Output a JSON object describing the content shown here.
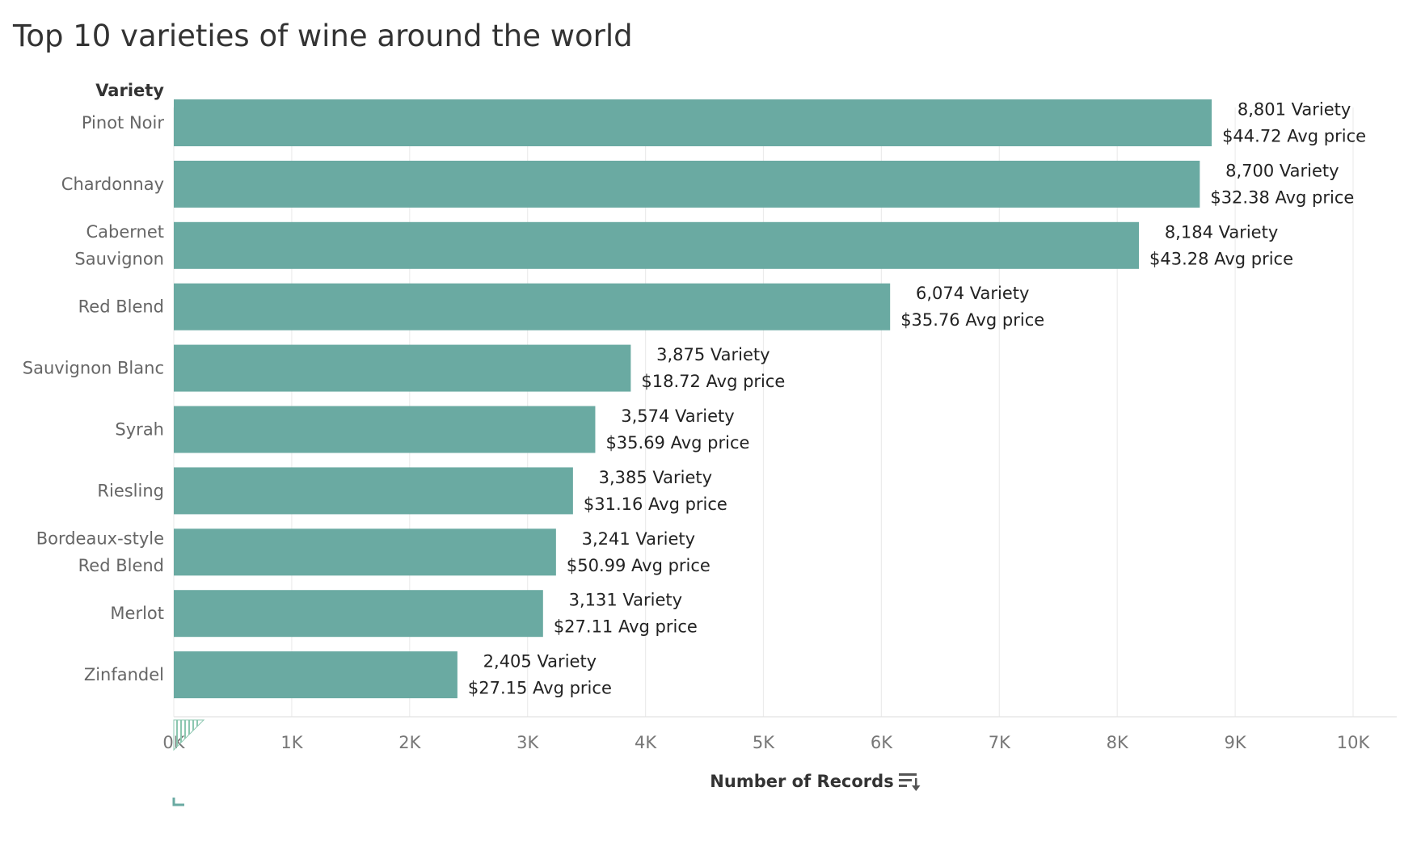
{
  "chart_data": {
    "type": "bar",
    "orientation": "horizontal",
    "title": "Top 10 varieties of wine around the world",
    "category_header": "Variety",
    "xlabel": "Number of Records",
    "xlim": [
      0,
      10000
    ],
    "x_ticks": [
      "0K",
      "1K",
      "2K",
      "3K",
      "4K",
      "5K",
      "6K",
      "7K",
      "8K",
      "9K",
      "10K"
    ],
    "grid": true,
    "bar_color": "#6aaaa2",
    "categories": [
      [
        "Pinot Noir"
      ],
      [
        "Chardonnay"
      ],
      [
        "Cabernet",
        "Sauvignon"
      ],
      [
        "Red Blend"
      ],
      [
        "Sauvignon Blanc"
      ],
      [
        "Syrah"
      ],
      [
        "Riesling"
      ],
      [
        "Bordeaux-style",
        "Red Blend"
      ],
      [
        "Merlot"
      ],
      [
        "Zinfandel"
      ]
    ],
    "values": [
      8801,
      8700,
      8184,
      6074,
      3875,
      3574,
      3385,
      3241,
      3131,
      2405
    ],
    "avg_price": [
      44.72,
      32.38,
      43.28,
      35.76,
      18.72,
      35.69,
      31.16,
      50.99,
      27.11,
      27.15
    ],
    "labels": [
      [
        "8,801 Variety",
        "$44.72 Avg price"
      ],
      [
        "8,700 Variety",
        "$32.38 Avg price"
      ],
      [
        "8,184 Variety",
        "$43.28 Avg price"
      ],
      [
        "6,074 Variety",
        "$35.76 Avg price"
      ],
      [
        "3,875 Variety",
        "$18.72 Avg price"
      ],
      [
        "3,574 Variety",
        "$35.69 Avg price"
      ],
      [
        "3,385 Variety",
        "$31.16 Avg price"
      ],
      [
        "3,241 Variety",
        "$50.99 Avg price"
      ],
      [
        "3,131 Variety",
        "$27.11 Avg price"
      ],
      [
        "2,405 Variety",
        "$27.15 Avg price"
      ]
    ],
    "sort_icon": "sort-descending-icon"
  }
}
